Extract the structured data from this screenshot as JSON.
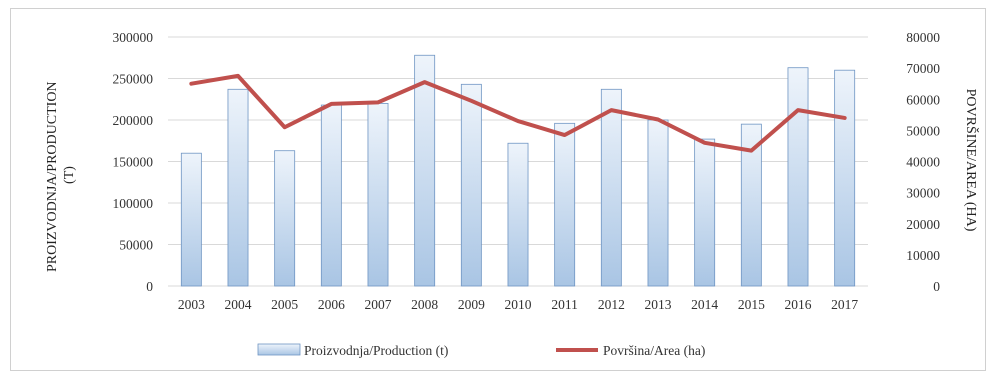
{
  "chart_data": {
    "type": "bar",
    "categories": [
      "2003",
      "2004",
      "2005",
      "2006",
      "2007",
      "2008",
      "2009",
      "2010",
      "2011",
      "2012",
      "2013",
      "2014",
      "2015",
      "2016",
      "2017"
    ],
    "series": [
      {
        "name": "Proizvodnja/Production (t)",
        "type": "bar",
        "axis": "left",
        "values": [
          160000,
          237000,
          163000,
          218000,
          220000,
          278000,
          243000,
          172000,
          196000,
          237000,
          200000,
          177000,
          195000,
          263000,
          260000
        ]
      },
      {
        "name": "Površina/Area (ha)",
        "type": "line",
        "axis": "right",
        "values": [
          65000,
          67500,
          51000,
          58500,
          59000,
          65500,
          59500,
          53000,
          48500,
          56500,
          53500,
          46000,
          43500,
          56500,
          54000
        ]
      }
    ],
    "ylabel": "PROIZVODNJA/PRODUCTION (T)",
    "y2label": "POVRŠINE/AREA (HA)",
    "ylim": [
      0,
      300000
    ],
    "y2lim": [
      0,
      80000
    ],
    "yticks": [
      "0",
      "50000",
      "100000",
      "150000",
      "200000",
      "250000",
      "300000"
    ],
    "y2ticks": [
      "0",
      "10000",
      "20000",
      "30000",
      "40000",
      "50000",
      "60000",
      "70000",
      "80000"
    ],
    "grid": true,
    "legend_position": "bottom",
    "colors": {
      "bar_top": "#eef4fb",
      "bar_bottom": "#a9c5e4",
      "bar_stroke": "#6f95c3",
      "line": "#c0504d",
      "grid": "#d9d9d9"
    }
  }
}
